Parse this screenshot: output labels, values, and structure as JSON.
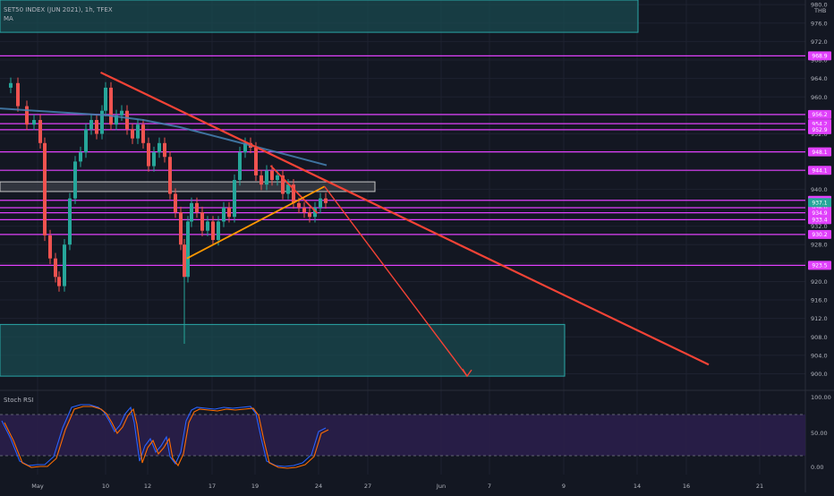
{
  "header": {
    "symbol_line": "SET50 INDEX (JUN 2021), 1h, TFEX",
    "ma_label": "MA",
    "currency": "THB"
  },
  "colors": {
    "background": "#131722",
    "grid": "#1e2230",
    "up": "#26a69a",
    "down": "#ef5350",
    "level_line": "#e040fb",
    "trend_line": "#f44336",
    "support_line": "#ff9800",
    "ma_line": "#4682b4",
    "zone_fill": "#1a4a4f",
    "zone_border": "#2aa7a7",
    "rsi_band": "#2a1e4a",
    "rsi_k": "#2962ff",
    "rsi_d": "#ff6d00"
  },
  "chart_data": {
    "type": "candlestick",
    "x_ticks": [
      "May",
      "10",
      "12",
      "17",
      "19",
      "24",
      "27",
      "Jun",
      "7",
      "9",
      "14",
      "16",
      "21"
    ],
    "y_ticks": [
      980.0,
      976.0,
      972.0,
      968.0,
      964.0,
      960.0,
      956.0,
      952.0,
      948.0,
      944.0,
      940.0,
      936.0,
      932.0,
      928.0,
      924.0,
      920.0,
      916.0,
      912.0,
      908.0,
      904.0,
      900.0
    ],
    "ylim": [
      897.0,
      981.0
    ],
    "price_levels": [
      968.9,
      956.2,
      954.2,
      952.9,
      948.1,
      944.1,
      937.6,
      936.0,
      934.9,
      933.4,
      930.2,
      923.5
    ],
    "last_price": 937.1,
    "zones": [
      {
        "name": "upper-resistance-zone",
        "price_top": 981,
        "price_bottom": 974.0
      },
      {
        "name": "lower-target-zone",
        "price_top": 910.7,
        "price_bottom": 899.5
      },
      {
        "name": "consolidation-box",
        "price_top": 941.6,
        "price_bottom": 939.5
      }
    ],
    "trend_lines": [
      {
        "name": "main-downtrend-line",
        "from": {
          "bar": 0.125,
          "price": 965.3
        },
        "to": {
          "bar": 0.88,
          "price": 902.0
        }
      },
      {
        "name": "short-downtrend-line",
        "from": {
          "bar": 0.336,
          "price": 945.1
        },
        "to": {
          "bar": 0.394,
          "price": 934.8
        }
      },
      {
        "name": "support-uptrend-line",
        "from": {
          "bar": 0.232,
          "price": 925.0
        },
        "to": {
          "bar": 0.403,
          "price": 940.6
        }
      },
      {
        "name": "projection-arrow",
        "from": {
          "bar": 0.403,
          "price": 940.6
        },
        "to": {
          "bar": 0.58,
          "price": 899.5
        }
      }
    ],
    "rsi": {
      "label": "Stoch RSI",
      "y_ticks": [
        100.0,
        50.0,
        0.0
      ],
      "upper_band": 80,
      "lower_band": 20
    }
  }
}
